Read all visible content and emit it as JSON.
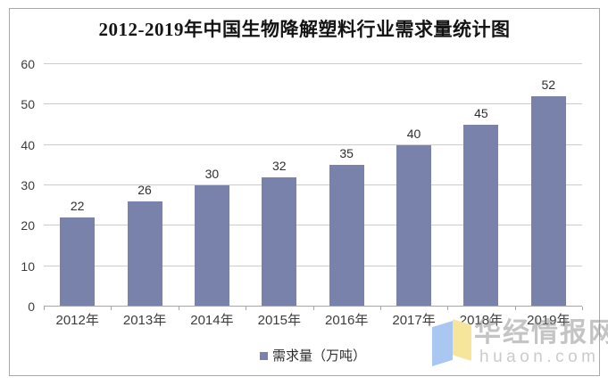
{
  "chart_data": {
    "type": "bar",
    "title": "2012-2019年中国生物降解塑料行业需求量统计图",
    "categories": [
      "2012年",
      "2013年",
      "2014年",
      "2015年",
      "2016年",
      "2017年",
      "2018年",
      "2019年"
    ],
    "values": [
      22,
      26,
      30,
      32,
      35,
      40,
      45,
      52
    ],
    "series_name": "需求量（万吨）",
    "xlabel": "",
    "ylabel": "",
    "ylim": [
      0,
      60
    ],
    "yticks": [
      0,
      10,
      20,
      30,
      40,
      50,
      60
    ],
    "grid": true,
    "legend_position": "bottom",
    "bar_color": "#7882ab",
    "gridline_color": "#cccccc",
    "axis_color": "#a6a6a6"
  },
  "watermark": {
    "brand": "华经情报网",
    "domain": "huaon.com",
    "logo_blue": "#a9c7f0",
    "logo_yellow": "#f6e69b"
  }
}
